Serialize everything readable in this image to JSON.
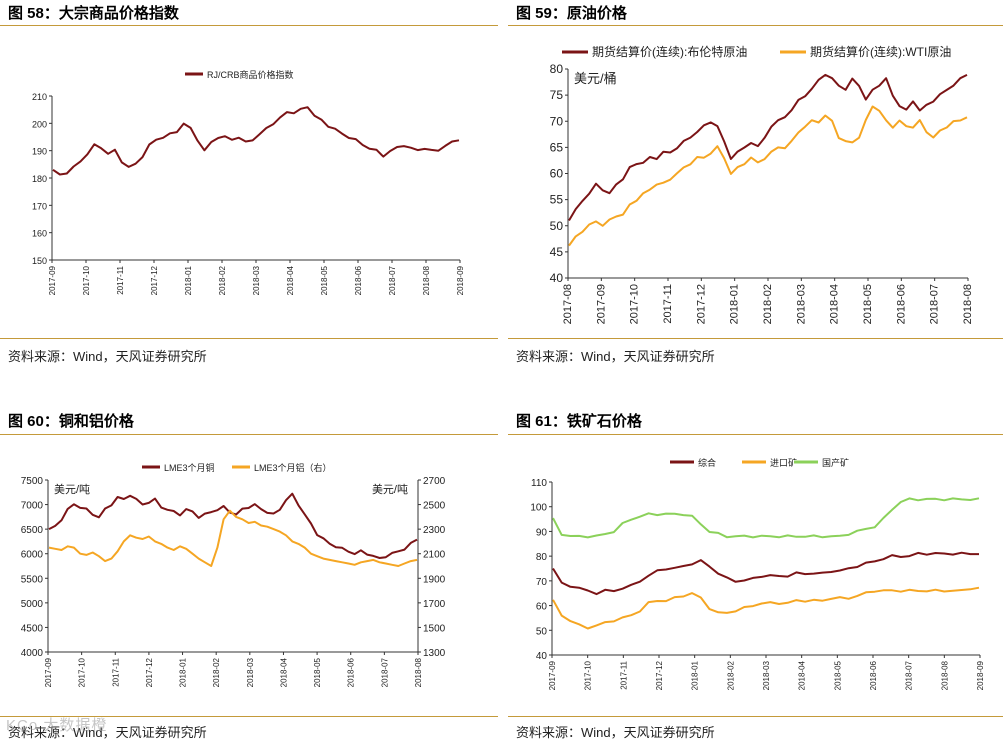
{
  "panels": [
    {
      "title": "图 58：大宗商品价格指数",
      "source": "资料来源：Wind，天风证券研究所"
    },
    {
      "title": "图 59：原油价格",
      "source": "资料来源：Wind，天风证券研究所"
    },
    {
      "title": "图 60：铜和铝价格",
      "source": "资料来源：Wind，天风证券研究所"
    },
    {
      "title": "图 61：铁矿石价格",
      "source": "资料来源：Wind，天风证券研究所"
    }
  ],
  "watermark": "KCo 大数据橙",
  "colors": {
    "maroon": "#7b1416",
    "orange": "#f5a623",
    "green": "#8bd15a",
    "rule": "#c49a3a"
  },
  "chart_data": [
    {
      "type": "line",
      "title": "",
      "ylim": [
        150,
        210
      ],
      "yticks": [
        "150",
        "160",
        "170",
        "180",
        "190",
        "200",
        "210"
      ],
      "xticks": [
        "2017-09",
        "2017-10",
        "2017-11",
        "2017-12",
        "2018-01",
        "2018-02",
        "2018-03",
        "2018-04",
        "2018-05",
        "2018-06",
        "2018-07",
        "2018-08",
        "2018-09"
      ],
      "series": [
        {
          "name": "RJ/CRB商品价格指数",
          "color": "#7b1416",
          "values": [
            183,
            181,
            182,
            184,
            186,
            189,
            192,
            191,
            189,
            190,
            186,
            184,
            185,
            188,
            192,
            194,
            195,
            196,
            197,
            200,
            198,
            194,
            190,
            193,
            195,
            195,
            194,
            195,
            193,
            194,
            196,
            198,
            200,
            202,
            204,
            204,
            205,
            206,
            203,
            201,
            199,
            198,
            196,
            195,
            194,
            192,
            191,
            190,
            188,
            190,
            191,
            192,
            191,
            190,
            191,
            190,
            190,
            192,
            193,
            194
          ]
        }
      ]
    },
    {
      "type": "line",
      "unit": "美元/桶",
      "ylim": [
        40,
        80
      ],
      "yticks": [
        "40",
        "45",
        "50",
        "55",
        "60",
        "65",
        "70",
        "75",
        "80"
      ],
      "xticks": [
        "2017-08",
        "2017-09",
        "2017-10",
        "2017-11",
        "2017-12",
        "2018-01",
        "2018-02",
        "2018-03",
        "2018-04",
        "2018-05",
        "2018-06",
        "2018-07",
        "2018-08"
      ],
      "series": [
        {
          "name": "期货结算价(连续):布伦特原油",
          "color": "#7b1416",
          "values": [
            51,
            53,
            55,
            56,
            58,
            57,
            56,
            58,
            59,
            61,
            62,
            62,
            63,
            63,
            64,
            64,
            65,
            66,
            67,
            68,
            69,
            70,
            69,
            66,
            63,
            64,
            65,
            66,
            65,
            67,
            69,
            70,
            71,
            72,
            74,
            75,
            76,
            78,
            79,
            78,
            77,
            76,
            78,
            77,
            74,
            76,
            77,
            78,
            75,
            73,
            72,
            74,
            72,
            73,
            74,
            75,
            76,
            77,
            78,
            79
          ]
        },
        {
          "name": "期货结算价(连续):WTI原油",
          "color": "#f5a623",
          "values": [
            46,
            48,
            49,
            50,
            51,
            50,
            51,
            52,
            52,
            54,
            55,
            56,
            57,
            58,
            58,
            59,
            60,
            61,
            62,
            63,
            63,
            64,
            65,
            63,
            60,
            61,
            62,
            63,
            62,
            63,
            64,
            65,
            65,
            66,
            68,
            69,
            70,
            70,
            71,
            70,
            67,
            66,
            66,
            67,
            70,
            73,
            72,
            70,
            69,
            70,
            69,
            69,
            70,
            68,
            67,
            68,
            69,
            70,
            70,
            71
          ]
        }
      ]
    },
    {
      "type": "line",
      "unit_left": "美元/吨",
      "unit_right": "美元/吨",
      "ylim": [
        4000,
        7500
      ],
      "ylim_right": [
        1300,
        2700
      ],
      "yticks": [
        "4000",
        "4500",
        "5000",
        "5500",
        "6000",
        "6500",
        "7000",
        "7500"
      ],
      "yticks_right": [
        "1300",
        "1500",
        "1700",
        "1900",
        "2100",
        "2300",
        "2500",
        "2700"
      ],
      "xticks": [
        "2017-09",
        "2017-10",
        "2017-11",
        "2017-12",
        "2018-01",
        "2018-02",
        "2018-03",
        "2018-04",
        "2018-05",
        "2018-06",
        "2018-07",
        "2018-08"
      ],
      "series": [
        {
          "name": "LME3个月铜",
          "color": "#7b1416",
          "axis": "left",
          "values": [
            6500,
            6550,
            6700,
            6900,
            7000,
            6950,
            6900,
            6800,
            6750,
            6900,
            7000,
            7150,
            7100,
            7200,
            7100,
            7000,
            7050,
            7100,
            6950,
            6900,
            6850,
            6800,
            6900,
            6850,
            6750,
            6800,
            6850,
            6900,
            6950,
            6850,
            6800,
            6900,
            6950,
            7000,
            6900,
            6850,
            6800,
            6900,
            7100,
            7200,
            7000,
            6800,
            6600,
            6400,
            6300,
            6200,
            6150,
            6100,
            6050,
            6000,
            6050,
            6000,
            5950,
            5900,
            5950,
            6000,
            6050,
            6100,
            6200,
            6300
          ]
        },
        {
          "name": "LME3个月铝（右）",
          "color": "#f5a623",
          "axis": "right",
          "values": [
            2150,
            2140,
            2130,
            2160,
            2150,
            2100,
            2090,
            2110,
            2080,
            2040,
            2060,
            2120,
            2200,
            2250,
            2230,
            2220,
            2240,
            2200,
            2180,
            2150,
            2130,
            2160,
            2140,
            2100,
            2060,
            2030,
            2000,
            2150,
            2380,
            2450,
            2400,
            2380,
            2350,
            2360,
            2330,
            2320,
            2300,
            2280,
            2250,
            2200,
            2180,
            2150,
            2100,
            2080,
            2060,
            2050,
            2040,
            2030,
            2020,
            2010,
            2030,
            2040,
            2050,
            2030,
            2020,
            2010,
            2000,
            2020,
            2040,
            2050
          ]
        }
      ]
    },
    {
      "type": "line",
      "ylim": [
        40,
        110
      ],
      "yticks": [
        "40",
        "50",
        "60",
        "70",
        "80",
        "90",
        "100",
        "110"
      ],
      "xticks": [
        "2017-09",
        "2017-10",
        "2017-11",
        "2017-12",
        "2018-01",
        "2018-02",
        "2018-03",
        "2018-04",
        "2018-05",
        "2018-06",
        "2018-07",
        "2018-08",
        "2018-09"
      ],
      "series": [
        {
          "name": "综合",
          "color": "#7b1416",
          "values": [
            75,
            69,
            68,
            67,
            66,
            65,
            66,
            66,
            67,
            68,
            70,
            72,
            74,
            75,
            75,
            76,
            77,
            78,
            76,
            73,
            71,
            70,
            70,
            71,
            72,
            72,
            72,
            72,
            73,
            73,
            73,
            73,
            74,
            74,
            75,
            76,
            77,
            78,
            79,
            80,
            80,
            80,
            81,
            81,
            81,
            81,
            81,
            81,
            81,
            81
          ]
        },
        {
          "name": "进口矿",
          "color": "#f5a623",
          "values": [
            62,
            56,
            54,
            52,
            51,
            52,
            53,
            54,
            55,
            56,
            58,
            61,
            62,
            62,
            63,
            64,
            65,
            63,
            59,
            57,
            57,
            58,
            59,
            60,
            61,
            61,
            61,
            61,
            62,
            62,
            62,
            62,
            63,
            63,
            63,
            64,
            65,
            66,
            66,
            66,
            66,
            66,
            66,
            66,
            66,
            66,
            66,
            66,
            67,
            67
          ]
        },
        {
          "name": "国产矿",
          "color": "#8bd15a",
          "values": [
            95,
            89,
            88,
            88,
            88,
            88,
            89,
            90,
            93,
            95,
            96,
            97,
            97,
            97,
            97,
            97,
            96,
            93,
            90,
            89,
            88,
            88,
            88,
            88,
            88,
            88,
            88,
            88,
            88,
            88,
            88,
            88,
            88,
            88,
            89,
            90,
            91,
            92,
            95,
            99,
            102,
            103,
            103,
            103,
            103,
            103,
            103,
            103,
            103,
            103
          ]
        }
      ]
    }
  ]
}
